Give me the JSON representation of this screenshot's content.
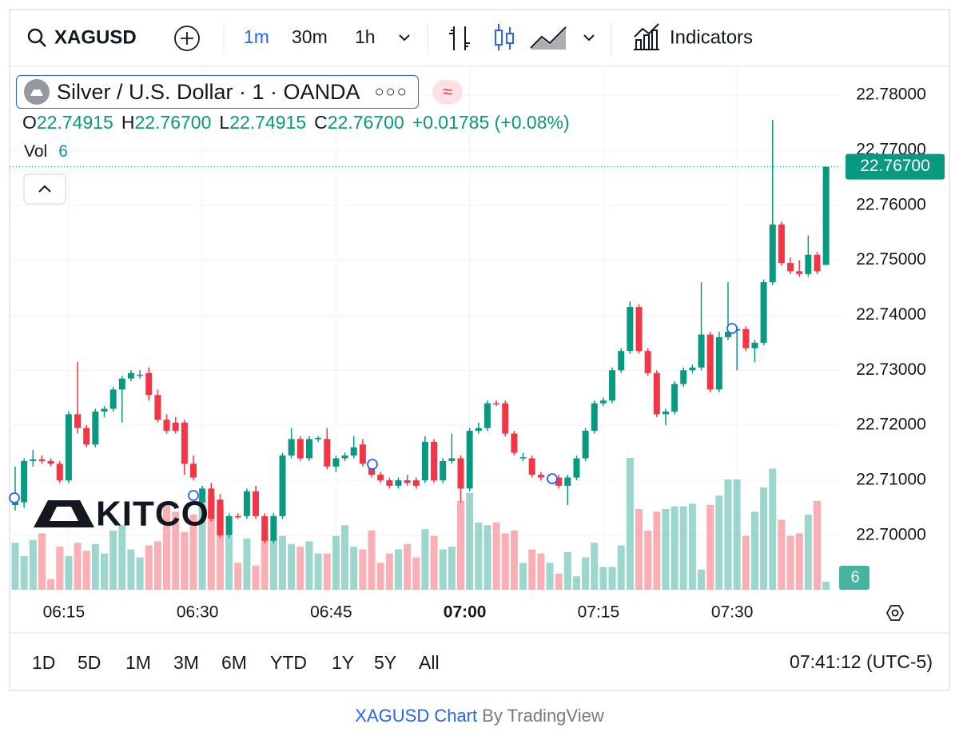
{
  "toolbar": {
    "symbol": "XAGUSD",
    "intervals": [
      "1m",
      "30m",
      "1h"
    ],
    "indicators": "Indicators"
  },
  "legend": {
    "title": "Silver / U.S. Dollar · 1 · OANDA",
    "fields": [
      {
        "key": "O",
        "value": "22.74915"
      },
      {
        "key": "H",
        "value": "22.76700"
      },
      {
        "key": "L",
        "value": "22.74915"
      },
      {
        "key": "C",
        "value": "22.76700"
      }
    ],
    "change": "+0.01785 (+0.08%)",
    "vol_label": "Vol"
  },
  "watermark": "KITCO",
  "ranges": [
    "1D",
    "5D",
    "1M",
    "3M",
    "6M",
    "YTD",
    "1Y",
    "5Y",
    "All"
  ],
  "clock": "07:41:12 (UTC-5)",
  "footer": {
    "link": "XAGUSD Chart",
    "by": "By TradingView"
  },
  "chart_data": {
    "type": "candlestick",
    "up_color": "#089981",
    "down_color": "#f23645",
    "categories": [
      null,
      null,
      null,
      null,
      null,
      null,
      "06:15",
      null,
      null,
      null,
      null,
      null,
      null,
      null,
      null,
      null,
      null,
      null,
      null,
      null,
      null,
      "06:30",
      null,
      null,
      null,
      null,
      null,
      null,
      null,
      null,
      null,
      null,
      null,
      null,
      null,
      null,
      "06:45",
      null,
      null,
      null,
      null,
      null,
      null,
      null,
      null,
      null,
      null,
      null,
      null,
      null,
      null,
      "07:00",
      null,
      null,
      null,
      null,
      null,
      null,
      null,
      null,
      null,
      null,
      null,
      null,
      null,
      null,
      "07:15",
      null,
      null,
      null,
      null,
      null,
      null,
      null,
      null,
      null,
      null,
      null,
      null,
      null,
      null,
      "07:30",
      null,
      null,
      null,
      null,
      null,
      null,
      null,
      null,
      null,
      null
    ],
    "open": [
      22.7055,
      22.706,
      22.7135,
      22.7138,
      22.7135,
      22.713,
      22.71,
      22.722,
      22.7195,
      22.7165,
      22.7225,
      22.723,
      22.7265,
      22.7285,
      22.729,
      22.7295,
      22.7255,
      22.721,
      22.7205,
      22.7205,
      22.713,
      22.706,
      22.7085,
      22.7065,
      22.7,
      22.7035,
      22.7035,
      22.708,
      22.7035,
      22.699,
      22.7035,
      22.7145,
      22.7175,
      22.714,
      22.7175,
      22.7175,
      22.7125,
      22.714,
      22.7145,
      22.7165,
      22.713,
      22.711,
      22.71,
      22.709,
      22.71,
      22.71,
      22.71,
      22.717,
      22.71,
      22.7135,
      22.714,
      22.7085,
      22.719,
      22.7195,
      22.724,
      22.724,
      22.7185,
      22.714,
      22.714,
      22.711,
      22.71,
      22.7105,
      22.709,
      22.7105,
      22.714,
      22.719,
      22.724,
      22.7245,
      22.73,
      22.7335,
      22.7415,
      22.7335,
      22.7295,
      22.722,
      22.7225,
      22.7275,
      22.73,
      22.7305,
      22.7365,
      22.7265,
      22.736,
      22.7372,
      22.7375,
      22.734,
      22.735,
      22.746,
      22.7565,
      22.7495,
      22.748,
      22.7475,
      22.751,
      22.74915
    ],
    "high": [
      22.7125,
      22.714,
      22.7155,
      22.7145,
      22.714,
      22.7135,
      22.7225,
      22.7315,
      22.72,
      22.723,
      22.7235,
      22.727,
      22.729,
      22.73,
      22.73,
      22.7305,
      22.7265,
      22.722,
      22.7215,
      22.721,
      22.7145,
      22.709,
      22.7095,
      22.7075,
      22.704,
      22.704,
      22.7085,
      22.709,
      22.704,
      22.704,
      22.715,
      22.7195,
      22.718,
      22.718,
      22.718,
      22.7195,
      22.7145,
      22.715,
      22.718,
      22.7175,
      22.7135,
      22.7115,
      22.7105,
      22.7105,
      22.711,
      22.7105,
      22.718,
      22.7175,
      22.714,
      22.7185,
      22.7145,
      22.7195,
      22.7205,
      22.7245,
      22.7245,
      22.7245,
      22.719,
      22.715,
      22.7145,
      22.7115,
      22.7105,
      22.711,
      22.711,
      22.7145,
      22.7195,
      22.7245,
      22.725,
      22.7305,
      22.734,
      22.7425,
      22.742,
      22.734,
      22.73,
      22.723,
      22.728,
      22.7305,
      22.731,
      22.746,
      22.737,
      22.737,
      22.746,
      22.738,
      22.738,
      22.7355,
      22.7465,
      22.7755,
      22.757,
      22.7505,
      22.75,
      22.7545,
      22.7515,
      22.767
    ],
    "low": [
      22.7045,
      22.705,
      22.7125,
      22.713,
      22.7125,
      22.7095,
      22.7095,
      22.7185,
      22.716,
      22.716,
      22.7215,
      22.7225,
      22.7205,
      22.728,
      22.7285,
      22.7245,
      22.7205,
      22.7185,
      22.7185,
      22.711,
      22.71,
      22.705,
      22.7025,
      22.6995,
      22.6995,
      22.703,
      22.703,
      22.703,
      22.6985,
      22.6985,
      22.703,
      22.714,
      22.7135,
      22.7135,
      22.717,
      22.712,
      22.7115,
      22.7135,
      22.714,
      22.7125,
      22.7105,
      22.7095,
      22.7085,
      22.7085,
      22.709,
      22.7085,
      22.7095,
      22.7095,
      22.7095,
      22.713,
      22.706,
      22.708,
      22.7185,
      22.719,
      22.7235,
      22.718,
      22.7145,
      22.7135,
      22.7105,
      22.71,
      22.7095,
      22.7085,
      22.7055,
      22.71,
      22.7135,
      22.7185,
      22.7235,
      22.724,
      22.7295,
      22.733,
      22.733,
      22.729,
      22.7215,
      22.72,
      22.722,
      22.727,
      22.7295,
      22.73,
      22.726,
      22.726,
      22.7355,
      22.73,
      22.7335,
      22.7315,
      22.7345,
      22.7455,
      22.749,
      22.7475,
      22.747,
      22.747,
      22.7475,
      22.74915
    ],
    "close": [
      22.706,
      22.7135,
      22.7138,
      22.7135,
      22.713,
      22.71,
      22.722,
      22.7195,
      22.7165,
      22.7225,
      22.723,
      22.7265,
      22.7285,
      22.7295,
      22.7292,
      22.7255,
      22.721,
      22.719,
      22.719,
      22.713,
      22.7105,
      22.7085,
      22.703,
      22.7,
      22.7035,
      22.7033,
      22.708,
      22.7035,
      22.699,
      22.7035,
      22.7145,
      22.7175,
      22.714,
      22.7175,
      22.7177,
      22.7125,
      22.714,
      22.7145,
      22.716,
      22.713,
      22.711,
      22.71,
      22.709,
      22.71,
      22.7095,
      22.709,
      22.717,
      22.71,
      22.7135,
      22.714,
      22.7085,
      22.719,
      22.7195,
      22.724,
      22.7238,
      22.7185,
      22.715,
      22.7142,
      22.711,
      22.7105,
      22.7102,
      22.709,
      22.7105,
      22.714,
      22.719,
      22.724,
      22.7245,
      22.73,
      22.7335,
      22.7415,
      22.7335,
      22.7295,
      22.722,
      22.7225,
      22.7275,
      22.73,
      22.7305,
      22.7365,
      22.7265,
      22.736,
      22.737,
      22.7375,
      22.734,
      22.735,
      22.746,
      22.7565,
      22.7495,
      22.748,
      22.7475,
      22.751,
      22.748,
      22.767
    ],
    "volume": [
      35,
      25,
      37,
      42,
      8,
      32,
      25,
      35,
      29,
      34,
      27,
      44,
      48,
      30,
      24,
      33,
      36,
      64,
      58,
      43,
      56,
      67,
      70,
      62,
      40,
      20,
      38,
      18,
      40,
      38,
      40,
      34,
      32,
      36,
      27,
      27,
      40,
      48,
      32,
      30,
      44,
      20,
      27,
      30,
      34,
      24,
      45,
      40,
      30,
      32,
      66,
      72,
      50,
      48,
      50,
      42,
      44,
      20,
      30,
      27,
      20,
      12,
      28,
      10,
      24,
      35,
      17,
      17,
      33,
      98,
      60,
      44,
      58,
      60,
      62,
      62,
      64,
      15,
      63,
      70,
      82,
      82,
      40,
      58,
      76,
      90,
      52,
      40,
      42,
      56,
      66,
      6
    ],
    "last_price_label": "22.76700",
    "ylim": [
      22.6901,
      22.7851
    ],
    "yticks": [
      {
        "value": 22.7,
        "label": "22.70000"
      },
      {
        "value": 22.71,
        "label": "22.71000"
      },
      {
        "value": 22.72,
        "label": "22.72000"
      },
      {
        "value": 22.73,
        "label": "22.73000"
      },
      {
        "value": 22.74,
        "label": "22.74000"
      },
      {
        "value": 22.75,
        "label": "22.75000"
      },
      {
        "value": 22.76,
        "label": "22.76000"
      },
      {
        "value": 22.77,
        "label": "22.77000"
      },
      {
        "value": 22.78,
        "label": "22.78000"
      }
    ],
    "grid": true
  }
}
